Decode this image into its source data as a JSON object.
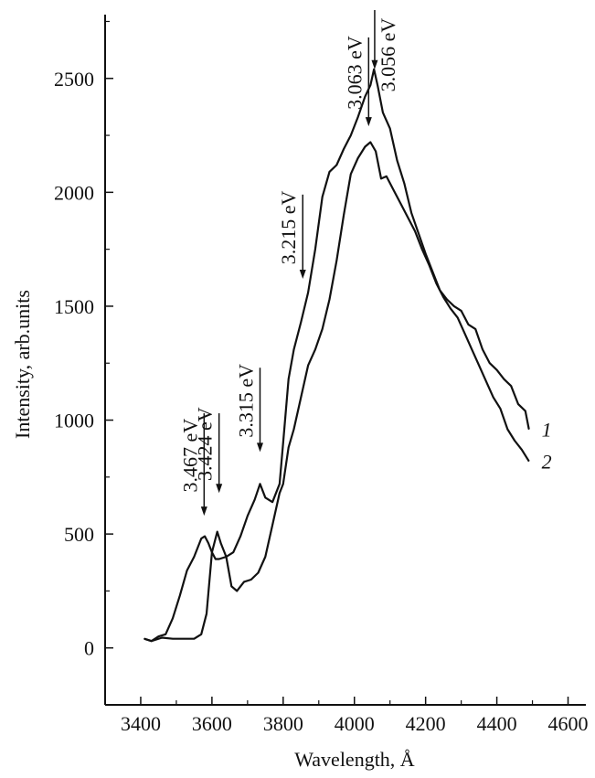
{
  "chart_data": {
    "type": "line",
    "xlabel": "Wavelength, Å",
    "ylabel": "Intensity, arb.units",
    "xlim": [
      3300,
      4650
    ],
    "ylim": [
      -250,
      2780
    ],
    "x_ticks": [
      3400,
      3600,
      3800,
      4000,
      4200,
      4400,
      4600
    ],
    "y_ticks": [
      0,
      500,
      1000,
      1500,
      2000,
      2500
    ],
    "grid": false,
    "legend": "inline labels at right end of curves",
    "series": [
      {
        "name": "1",
        "x": [
          3410,
          3430,
          3450,
          3470,
          3490,
          3510,
          3530,
          3550,
          3570,
          3580,
          3590,
          3600,
          3610,
          3620,
          3640,
          3660,
          3680,
          3700,
          3720,
          3735,
          3750,
          3770,
          3790,
          3800,
          3815,
          3830,
          3850,
          3870,
          3890,
          3910,
          3930,
          3950,
          3970,
          3990,
          4010,
          4030,
          4045,
          4055,
          4065,
          4080,
          4100,
          4120,
          4140,
          4160,
          4180,
          4200,
          4220,
          4240,
          4260,
          4280,
          4300,
          4320,
          4340,
          4360,
          4380,
          4400,
          4420,
          4440,
          4460,
          4480,
          4490
        ],
        "y": [
          40,
          30,
          50,
          60,
          130,
          230,
          340,
          400,
          480,
          490,
          460,
          420,
          390,
          390,
          400,
          420,
          490,
          580,
          650,
          720,
          660,
          640,
          720,
          900,
          1180,
          1310,
          1430,
          1560,
          1750,
          1980,
          2090,
          2120,
          2190,
          2250,
          2330,
          2420,
          2470,
          2540,
          2470,
          2350,
          2280,
          2140,
          2040,
          1910,
          1820,
          1730,
          1650,
          1570,
          1530,
          1500,
          1480,
          1420,
          1400,
          1310,
          1250,
          1220,
          1180,
          1150,
          1070,
          1040,
          960
        ]
      },
      {
        "name": "2",
        "x": [
          3410,
          3430,
          3460,
          3490,
          3520,
          3550,
          3570,
          3585,
          3600,
          3615,
          3625,
          3640,
          3655,
          3670,
          3690,
          3710,
          3730,
          3750,
          3770,
          3790,
          3800,
          3815,
          3830,
          3850,
          3870,
          3890,
          3910,
          3930,
          3950,
          3970,
          3990,
          4010,
          4030,
          4045,
          4060,
          4075,
          4090,
          4110,
          4130,
          4150,
          4170,
          4190,
          4210,
          4230,
          4250,
          4270,
          4290,
          4310,
          4330,
          4350,
          4370,
          4390,
          4410,
          4430,
          4450,
          4470,
          4490
        ],
        "y": [
          40,
          30,
          45,
          40,
          40,
          40,
          60,
          150,
          420,
          510,
          460,
          400,
          270,
          250,
          290,
          300,
          330,
          400,
          540,
          680,
          720,
          880,
          960,
          1100,
          1240,
          1310,
          1400,
          1530,
          1700,
          1900,
          2080,
          2150,
          2200,
          2220,
          2180,
          2060,
          2070,
          2010,
          1950,
          1890,
          1830,
          1750,
          1680,
          1600,
          1540,
          1490,
          1450,
          1380,
          1310,
          1240,
          1170,
          1100,
          1050,
          960,
          910,
          870,
          820
        ]
      }
    ],
    "annotations": [
      {
        "label": "3.467 eV",
        "x": 3578,
        "arrow_tip_y": 580,
        "arrow_tail_y": 1030
      },
      {
        "label": "3.424 eV",
        "x": 3620,
        "arrow_tip_y": 680,
        "arrow_tail_y": 1030
      },
      {
        "label": "3.315 eV",
        "x": 3735,
        "arrow_tip_y": 860,
        "arrow_tail_y": 1230
      },
      {
        "label": "3.215 eV",
        "x": 3855,
        "arrow_tip_y": 1620,
        "arrow_tail_y": 1990
      },
      {
        "label": "3.063 eV",
        "x": 4040,
        "arrow_tip_y": 2290,
        "arrow_tail_y": 2680
      },
      {
        "label": "3.056 eV",
        "x": 4057,
        "arrow_tip_y": 2540,
        "arrow_tail_y": 2800
      }
    ]
  }
}
